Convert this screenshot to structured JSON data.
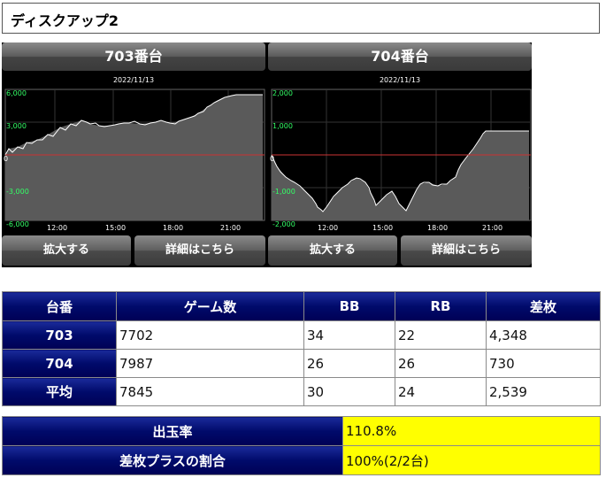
{
  "page_title": "ディスクアップ2",
  "machines": [
    {
      "name": "703番台",
      "date": "2022/11/13",
      "expand_label": "拡大する",
      "detail_label": "詳細はこちら",
      "yaxis": [
        "6,000",
        "3,000",
        "0",
        "-3,000",
        "-6,000"
      ],
      "xaxis": [
        "12:00",
        "15:00",
        "18:00",
        "21:00"
      ]
    },
    {
      "name": "704番台",
      "date": "2022/11/13",
      "expand_label": "拡大する",
      "detail_label": "詳細はこちら",
      "yaxis": [
        "2,000",
        "1,000",
        "0",
        "-1,000",
        "-2,000"
      ],
      "xaxis": [
        "12:00",
        "15:00",
        "18:00",
        "21:00"
      ]
    }
  ],
  "stats": {
    "headers": [
      "台番",
      "ゲーム数",
      "BB",
      "RB",
      "差枚"
    ],
    "rows": [
      {
        "id": "703",
        "games": "7702",
        "bb": "34",
        "rb": "22",
        "diff": "4,348"
      },
      {
        "id": "704",
        "games": "7987",
        "bb": "26",
        "rb": "26",
        "diff": "730"
      },
      {
        "id": "平均",
        "games": "7845",
        "bb": "30",
        "rb": "24",
        "diff": "2,539"
      }
    ]
  },
  "summary": {
    "payout_label": "出玉率",
    "payout_value": "110.8%",
    "plus_label": "差枚プラスの割合",
    "plus_value": "100%(2/2台)"
  },
  "colors": {
    "header_blue": "#000a6a",
    "highlight_yellow": "#ffff00",
    "axis_green": "#33ff66",
    "zero_line": "#cc3333"
  }
}
